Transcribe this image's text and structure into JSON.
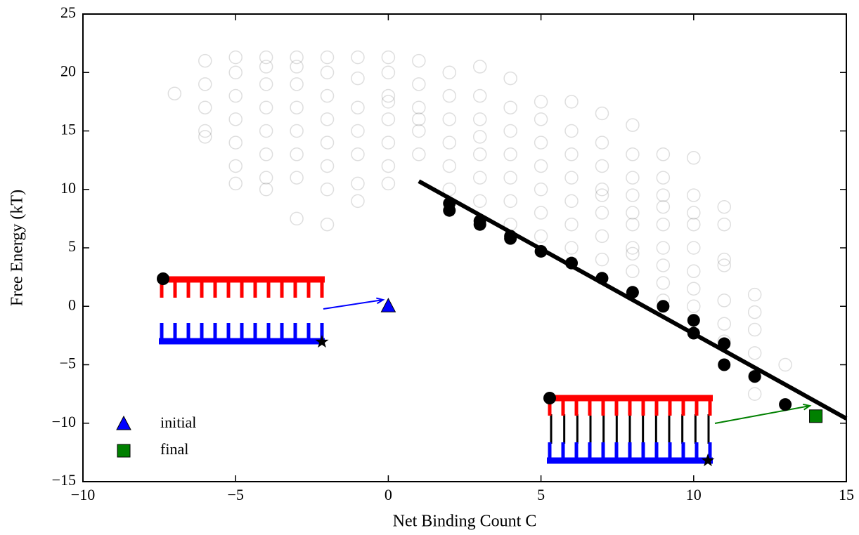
{
  "chart_data": {
    "type": "scatter",
    "xlabel": "Net Binding Count C",
    "ylabel": "Free Energy (kT)",
    "xlim": [
      -10,
      15
    ],
    "ylim": [
      -15,
      25
    ],
    "xticks": [
      {
        "value": -10,
        "label": "−10"
      },
      {
        "value": -5,
        "label": "−5"
      },
      0,
      5,
      10,
      15
    ],
    "yticks": [
      {
        "value": -15,
        "label": "−15"
      },
      {
        "value": -10,
        "label": "−10"
      },
      {
        "value": -5,
        "label": "−5"
      },
      0,
      5,
      10,
      15,
      20,
      25
    ],
    "legend": "lower left",
    "series": [
      {
        "style": "open-circle",
        "color": "#000000",
        "opacity": 0.13,
        "x": [
          -7,
          -6,
          -6,
          -6,
          -6,
          -6,
          -5,
          -5,
          -5,
          -5,
          -5,
          -5,
          -5,
          -4,
          -4,
          -4,
          -4,
          -4,
          -4,
          -4,
          -4,
          -3,
          -3,
          -3,
          -3,
          -3,
          -3,
          -3,
          -3,
          -2,
          -2,
          -2,
          -2,
          -2,
          -2,
          -2,
          -2,
          -1,
          -1,
          -1,
          -1,
          -1,
          -1,
          -1,
          0,
          0,
          0,
          0,
          0,
          0,
          0,
          0,
          1,
          1,
          1,
          1,
          1,
          1,
          2,
          2,
          2,
          2,
          2,
          2,
          3,
          3,
          3,
          3,
          3,
          3,
          3,
          4,
          4,
          4,
          4,
          4,
          4,
          4,
          5,
          5,
          5,
          5,
          5,
          5,
          5,
          6,
          6,
          6,
          6,
          6,
          6,
          6,
          7,
          7,
          7,
          7,
          7,
          7,
          7,
          7,
          8,
          8,
          8,
          8,
          8,
          8,
          8,
          8,
          8,
          9,
          9,
          9,
          9,
          9,
          9,
          9,
          9,
          9,
          10,
          10,
          10,
          10,
          10,
          10,
          10,
          10,
          11,
          11,
          11,
          11,
          11,
          11,
          11,
          12,
          12,
          12,
          12,
          12,
          12,
          13
        ],
        "values": [
          18.2,
          21,
          19,
          17,
          15,
          14.5,
          21.3,
          20,
          18,
          16,
          14,
          12,
          10.5,
          21.3,
          20.5,
          19,
          17,
          15,
          13,
          11,
          10,
          21.3,
          20.5,
          19,
          17,
          15,
          13,
          11,
          7.5,
          21.3,
          20,
          18,
          16,
          14,
          12,
          10,
          7,
          21.3,
          19.5,
          17,
          15,
          13,
          10.5,
          9,
          21.3,
          20,
          18,
          17.5,
          16,
          14,
          12,
          10.5,
          21,
          19,
          17,
          16,
          15,
          13,
          20,
          18,
          16,
          14,
          12,
          10,
          20.5,
          18,
          16,
          14.5,
          13,
          11,
          9,
          19.5,
          17,
          15,
          13,
          11,
          9,
          7,
          17.5,
          16,
          14,
          12,
          10,
          8,
          6,
          17.5,
          15,
          13,
          11,
          9,
          7,
          5,
          16.5,
          14,
          12,
          10,
          9.5,
          8,
          6,
          4,
          15.5,
          13,
          11,
          9.5,
          8,
          7,
          5,
          4.5,
          3,
          13,
          11,
          9.5,
          8.5,
          7,
          5,
          3.5,
          2,
          0.5,
          12.7,
          9.5,
          8,
          7,
          5,
          3,
          1.5,
          0,
          8.5,
          7,
          4,
          3.5,
          0.5,
          -1.5,
          -3,
          1,
          -0.5,
          -2,
          -4,
          -6,
          -7.5,
          -5
        ]
      },
      {
        "style": "filled-circle",
        "color": "#000000",
        "opacity": 1,
        "x": [
          2,
          2,
          3,
          3,
          4,
          4,
          5,
          6,
          7,
          8,
          9,
          10,
          10,
          11,
          11,
          12,
          13
        ],
        "values": [
          8.2,
          8.8,
          7,
          7.3,
          6,
          5.8,
          4.7,
          3.7,
          2.4,
          1.2,
          0,
          -1.2,
          -2.3,
          -3.2,
          -5,
          -6,
          -8.4
        ]
      },
      {
        "style": "line",
        "color": "#000000",
        "x": [
          1,
          15
        ],
        "values": [
          10.7,
          -9.6
        ]
      },
      {
        "name": "initial",
        "style": "triangle",
        "color": "#0000ff",
        "x": [
          0
        ],
        "values": [
          0
        ]
      },
      {
        "name": "final",
        "style": "square",
        "color": "#008000",
        "x": [
          14
        ],
        "values": [
          -9.4
        ]
      }
    ]
  }
}
